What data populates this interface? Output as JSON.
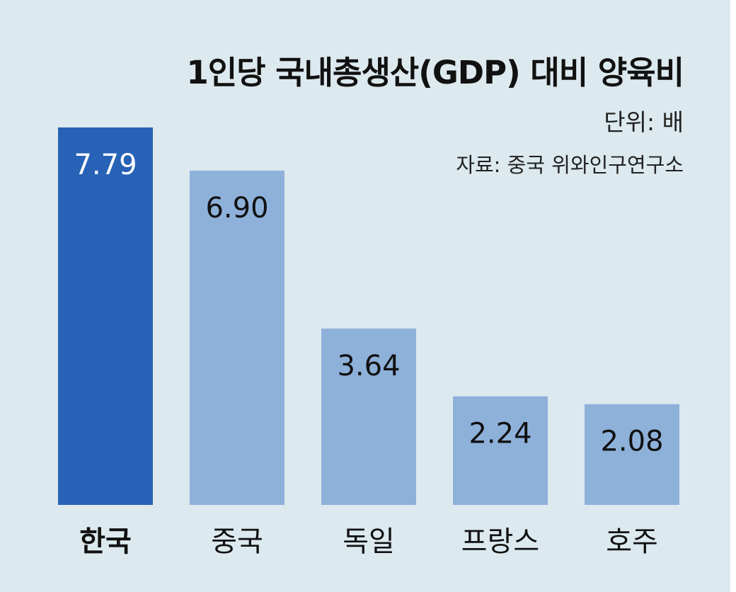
{
  "title": "1인당 국내총생산(GDP) 대비 양육비",
  "unit": "단위: 배",
  "source": "자료: 중국 위와인구연구소",
  "colors": {
    "background": "#dce9ee",
    "highlight_bar": "#2762b6",
    "bar": "#8eb1da",
    "highlight_value_text": "#ffffff",
    "value_text": "#111111"
  },
  "chart_data": {
    "type": "bar",
    "title": "1인당 국내총생산(GDP) 대비 양육비",
    "unit": "단위: 배",
    "categories": [
      "한국",
      "중국",
      "독일",
      "프랑스",
      "호주"
    ],
    "values": [
      7.79,
      6.9,
      3.64,
      2.24,
      2.08
    ],
    "value_labels": [
      "7.79",
      "6.90",
      "3.64",
      "2.24",
      "2.08"
    ],
    "highlight": "한국",
    "ylim": [
      0,
      7.79
    ],
    "grid": false,
    "legend": "none"
  }
}
